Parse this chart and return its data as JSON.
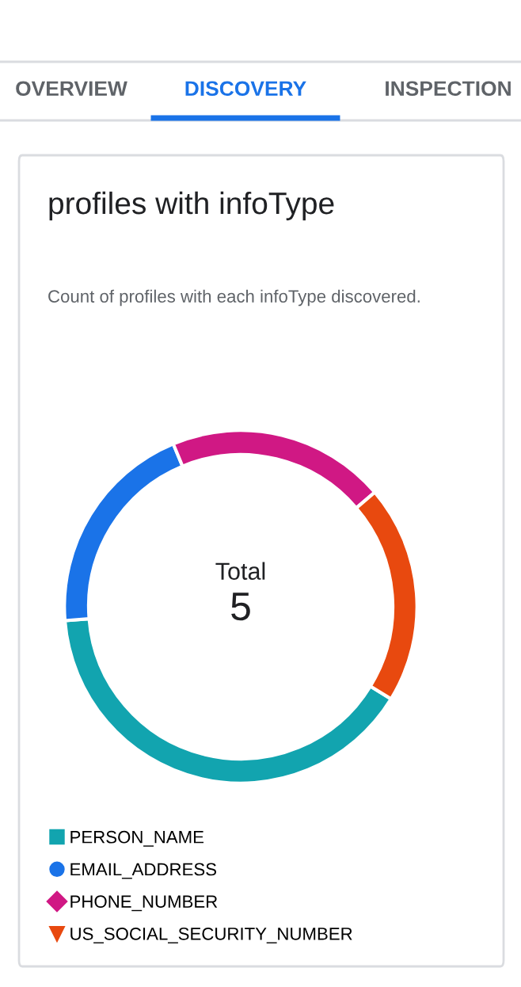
{
  "chart_data": {
    "type": "donut",
    "title": "profiles with infoType",
    "subtitle": "Count of profiles with each infoType discovered.",
    "categories": [
      "PERSON_NAME",
      "EMAIL_ADDRESS",
      "PHONE_NUMBER",
      "US_SOCIAL_SECURITY_NUMBER"
    ],
    "values": [
      40,
      20,
      20,
      20
    ],
    "colors": [
      "#12a4af",
      "#1a73e8",
      "#d01884",
      "#e8490f"
    ],
    "annotations": [
      "OVERVIEW",
      "DISCOVERY",
      "INSPECTION",
      "Total",
      "5"
    ],
    "legend": "bottom left"
  }
}
